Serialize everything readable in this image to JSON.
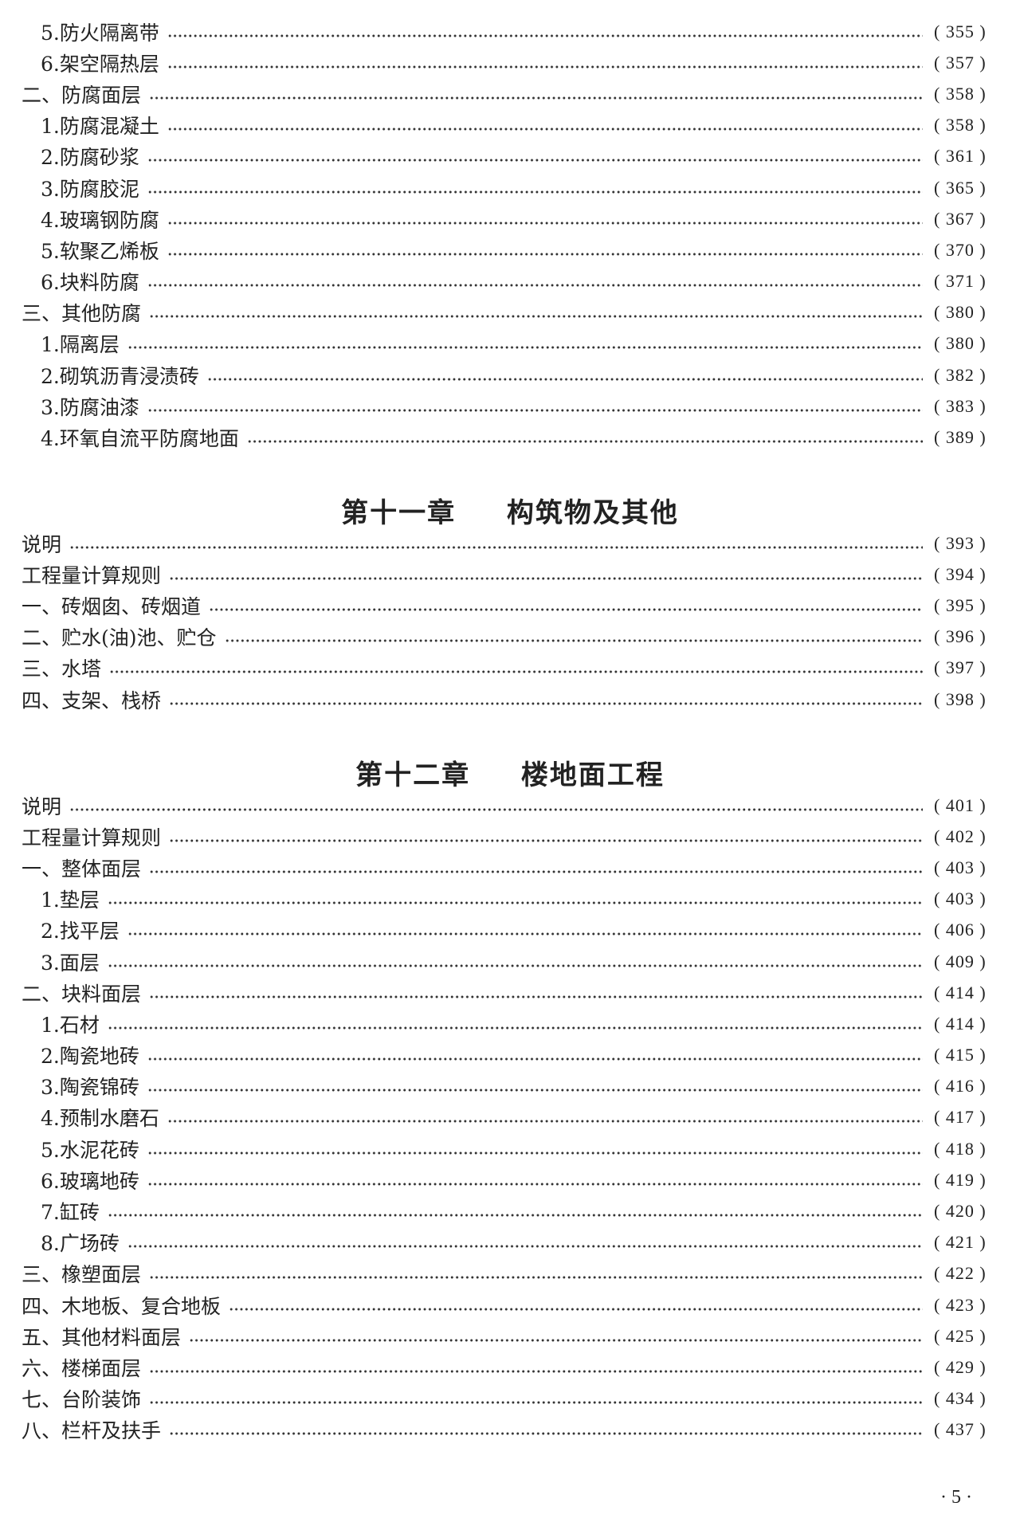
{
  "sections": [
    {
      "chapter": null,
      "entries": [
        {
          "level": 2,
          "label": "5.防火隔离带",
          "page": "( 355 )"
        },
        {
          "level": 2,
          "label": "6.架空隔热层",
          "page": "( 357 )"
        },
        {
          "level": 1,
          "label": "二、防腐面层",
          "page": "( 358 )"
        },
        {
          "level": 2,
          "label": "1.防腐混凝土",
          "page": "( 358 )"
        },
        {
          "level": 2,
          "label": "2.防腐砂浆",
          "page": "( 361 )"
        },
        {
          "level": 2,
          "label": "3.防腐胶泥",
          "page": "( 365 )"
        },
        {
          "level": 2,
          "label": "4.玻璃钢防腐",
          "page": "( 367 )"
        },
        {
          "level": 2,
          "label": "5.软聚乙烯板",
          "page": "( 370 )"
        },
        {
          "level": 2,
          "label": "6.块料防腐",
          "page": "( 371 )"
        },
        {
          "level": 1,
          "label": "三、其他防腐",
          "page": "( 380 )"
        },
        {
          "level": 2,
          "label": "1.隔离层",
          "page": "( 380 )"
        },
        {
          "level": 2,
          "label": "2.砌筑沥青浸渍砖",
          "page": "( 382 )"
        },
        {
          "level": 2,
          "label": "3.防腐油漆",
          "page": "( 383 )"
        },
        {
          "level": 2,
          "label": "4.环氧自流平防腐地面",
          "page": "( 389 )"
        }
      ]
    },
    {
      "chapter": {
        "number": "第十一章",
        "title": "构筑物及其他"
      },
      "entries": [
        {
          "level": 1,
          "label": "说明",
          "page": "( 393 )"
        },
        {
          "level": 1,
          "label": "工程量计算规则",
          "page": "( 394 )"
        },
        {
          "level": 1,
          "label": "一、砖烟囱、砖烟道",
          "page": "( 395 )"
        },
        {
          "level": 1,
          "label": "二、贮水(油)池、贮仓",
          "page": "( 396 )"
        },
        {
          "level": 1,
          "label": "三、水塔",
          "page": "( 397 )"
        },
        {
          "level": 1,
          "label": "四、支架、栈桥",
          "page": "( 398 )"
        }
      ]
    },
    {
      "chapter": {
        "number": "第十二章",
        "title": "楼地面工程"
      },
      "entries": [
        {
          "level": 1,
          "label": "说明",
          "page": "( 401 )"
        },
        {
          "level": 1,
          "label": "工程量计算规则",
          "page": "( 402 )"
        },
        {
          "level": 1,
          "label": "一、整体面层",
          "page": "( 403 )"
        },
        {
          "level": 2,
          "label": "1.垫层",
          "page": "( 403 )"
        },
        {
          "level": 2,
          "label": "2.找平层",
          "page": "( 406 )"
        },
        {
          "level": 2,
          "label": "3.面层",
          "page": "( 409 )"
        },
        {
          "level": 1,
          "label": "二、块料面层",
          "page": "( 414 )"
        },
        {
          "level": 2,
          "label": "1.石材",
          "page": "( 414 )"
        },
        {
          "level": 2,
          "label": "2.陶瓷地砖",
          "page": "( 415 )"
        },
        {
          "level": 2,
          "label": "3.陶瓷锦砖",
          "page": "( 416 )"
        },
        {
          "level": 2,
          "label": "4.预制水磨石",
          "page": "( 417 )"
        },
        {
          "level": 2,
          "label": "5.水泥花砖",
          "page": "( 418 )"
        },
        {
          "level": 2,
          "label": "6.玻璃地砖",
          "page": "( 419 )"
        },
        {
          "level": 2,
          "label": "7.缸砖",
          "page": "( 420 )"
        },
        {
          "level": 2,
          "label": "8.广场砖",
          "page": "( 421 )"
        },
        {
          "level": 1,
          "label": "三、橡塑面层",
          "page": "( 422 )"
        },
        {
          "level": 1,
          "label": "四、木地板、复合地板",
          "page": "( 423 )"
        },
        {
          "level": 1,
          "label": "五、其他材料面层",
          "page": "( 425 )"
        },
        {
          "level": 1,
          "label": "六、楼梯面层",
          "page": "( 429 )"
        },
        {
          "level": 1,
          "label": "七、台阶装饰",
          "page": "( 434 )"
        },
        {
          "level": 1,
          "label": "八、栏杆及扶手",
          "page": "( 437 )"
        }
      ]
    }
  ],
  "footer": {
    "page_number": "· 5 ·"
  }
}
